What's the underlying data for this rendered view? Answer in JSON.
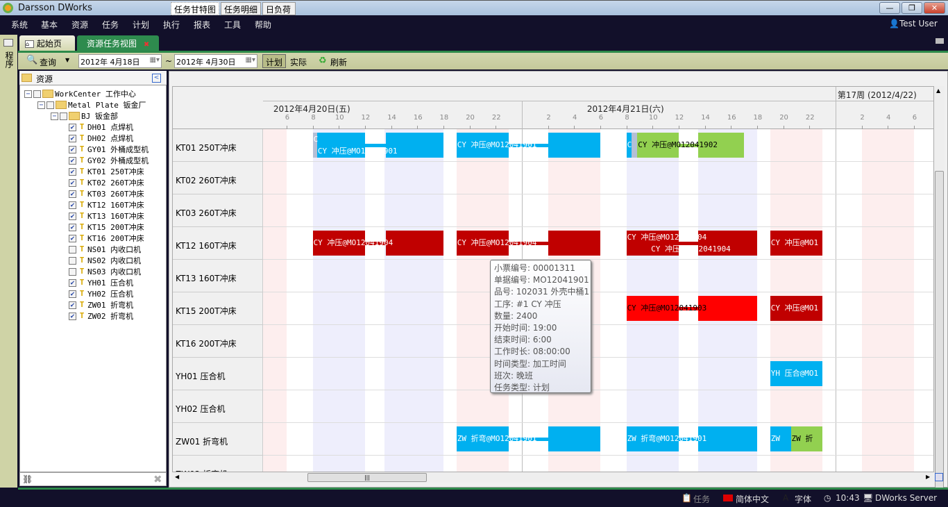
{
  "app": {
    "title": "Darsson DWorks",
    "user": "Test User"
  },
  "menu": [
    "系统",
    "基本",
    "资源",
    "任务",
    "计划",
    "执行",
    "报表",
    "工具",
    "帮助"
  ],
  "tabs": [
    {
      "label": "起始页"
    },
    {
      "label": "资源任务视图",
      "active": true
    }
  ],
  "left_strip": "程序",
  "toolbar": {
    "query": "查询",
    "date_from": "2012年  4月18日",
    "tilde": "~",
    "date_to": "2012年  4月30日",
    "plan": "计划",
    "actual": "实际",
    "refresh": "刷新"
  },
  "tree": {
    "header": "资源",
    "nodes": [
      {
        "label": "WorkCenter 工作中心",
        "level": 0,
        "checked": false
      },
      {
        "label": "Metal Plate 钣金厂",
        "level": 1,
        "checked": false
      },
      {
        "label": "BJ 钣金部",
        "level": 2,
        "checked": false
      },
      {
        "label": "DH01 点焊机",
        "level": 3,
        "checked": true
      },
      {
        "label": "DH02 点焊机",
        "level": 3,
        "checked": true
      },
      {
        "label": "GY01 外桶成型机",
        "level": 3,
        "checked": true
      },
      {
        "label": "GY02 外桶成型机",
        "level": 3,
        "checked": true
      },
      {
        "label": "KT01 250T冲床",
        "level": 3,
        "checked": true
      },
      {
        "label": "KT02 260T冲床",
        "level": 3,
        "checked": true
      },
      {
        "label": "KT03 260T冲床",
        "level": 3,
        "checked": true
      },
      {
        "label": "KT12 160T冲床",
        "level": 3,
        "checked": true
      },
      {
        "label": "KT13 160T冲床",
        "level": 3,
        "checked": true
      },
      {
        "label": "KT15 200T冲床",
        "level": 3,
        "checked": true
      },
      {
        "label": "KT16 200T冲床",
        "level": 3,
        "checked": true
      },
      {
        "label": "NS01 内收口机",
        "level": 3,
        "checked": false
      },
      {
        "label": "NS02 内收口机",
        "level": 3,
        "checked": false
      },
      {
        "label": "NS03 内收口机",
        "level": 3,
        "checked": false
      },
      {
        "label": "YH01 压合机",
        "level": 3,
        "checked": true
      },
      {
        "label": "YH02 压合机",
        "level": 3,
        "checked": true
      },
      {
        "label": "ZW01 折弯机",
        "level": 3,
        "checked": true
      },
      {
        "label": "ZW02 折弯机",
        "level": 3,
        "checked": true
      }
    ]
  },
  "view_tabs": [
    "任务甘特图",
    "任务明细",
    "日负荷"
  ],
  "gantt": {
    "week_label": "第17周 (2012/4/22)",
    "days": [
      {
        "date": "2012-04-20",
        "label": "2012年4月20日(五)"
      },
      {
        "date": "2012-04-21",
        "label": "2012年4月21日(六)"
      },
      {
        "date": "2012-04-22",
        "label": ""
      }
    ],
    "hour_ticks": [
      6,
      8,
      10,
      12,
      14,
      16,
      18,
      20,
      22,
      2,
      4,
      6,
      8,
      10,
      12,
      14,
      16,
      18,
      20,
      22,
      2,
      4,
      6
    ],
    "shifts": {
      "day": [
        [
          "08:00",
          "12:00"
        ],
        [
          "13:30",
          "18:00"
        ]
      ],
      "night": [
        [
          "19:00",
          "23:00"
        ],
        [
          "02:00",
          "06:00"
        ]
      ],
      "colors": {
        "day": "#eeeefc",
        "night": "#fdeeee"
      }
    },
    "resources": [
      "KT01 250T冲床",
      "KT02 260T冲床",
      "KT03 260T冲床",
      "KT12 160T冲床",
      "KT13 160T冲床",
      "KT15 200T冲床",
      "KT16 200T冲床",
      "YH01 压合机",
      "YH02 压合机",
      "ZW01 折弯机",
      "ZW02 折弯机"
    ],
    "tasks": [
      {
        "row": 0,
        "label": "C",
        "color": "#b4bfd6",
        "text": "#fff",
        "segs": [
          [
            "2012-04-20 08:00",
            "2012-04-20 08:20"
          ]
        ]
      },
      {
        "row": 0,
        "label": "CY 冲压@MO12041901",
        "color": "#00b0f0",
        "text": "#fff",
        "segs": [
          [
            "2012-04-20 08:20",
            "2012-04-20 12:00"
          ],
          [
            "2012-04-20 13:35",
            "2012-04-20 18:00"
          ]
        ]
      },
      {
        "row": 0,
        "label": "CY 冲压@MO12041901",
        "color": "#00b0f0",
        "text": "#fff",
        "segs": [
          [
            "2012-04-20 19:00",
            "2012-04-20 23:00"
          ],
          [
            "2012-04-21 02:00",
            "2012-04-21 06:00"
          ]
        ]
      },
      {
        "row": 0,
        "label": "C",
        "color": "#00b0f0",
        "text": "#fff",
        "segs": [
          [
            "2012-04-21 08:00",
            "2012-04-21 08:25"
          ]
        ]
      },
      {
        "row": 0,
        "label": "",
        "color": "#b4bfd6",
        "text": "#fff",
        "segs": [
          [
            "2012-04-21 08:25",
            "2012-04-21 08:50"
          ]
        ]
      },
      {
        "row": 0,
        "label": "CY 冲压@MO12041902",
        "color": "#92d050",
        "text": "#000",
        "segs": [
          [
            "2012-04-21 08:50",
            "2012-04-21 12:00"
          ],
          [
            "2012-04-21 13:30",
            "2012-04-21 17:00"
          ]
        ]
      },
      {
        "row": 3,
        "label": "CY 冲压@MO12041904",
        "color": "#c00000",
        "text": "#fff",
        "segs": [
          [
            "2012-04-20 08:00",
            "2012-04-20 12:00"
          ],
          [
            "2012-04-20 13:35",
            "2012-04-20 18:00"
          ]
        ]
      },
      {
        "row": 3,
        "label": "CY 冲压@MO12041904",
        "color": "#c00000",
        "text": "#fff",
        "segs": [
          [
            "2012-04-20 19:00",
            "2012-04-20 23:00"
          ],
          [
            "2012-04-21 02:00",
            "2012-04-21 06:00"
          ]
        ]
      },
      {
        "row": 3,
        "label": "CY 冲压@MO12041904",
        "color": "#c00000",
        "text": "#fff",
        "segs": [
          [
            "2012-04-21 08:00",
            "2012-04-21 09:50"
          ]
        ]
      },
      {
        "row": 3,
        "label": "CY 冲压@MO12041904",
        "color": "#c00000",
        "text": "#fff",
        "segs": [
          [
            "2012-04-21 09:50",
            "2012-04-21 12:00"
          ],
          [
            "2012-04-21 13:30",
            "2012-04-21 18:00"
          ]
        ]
      },
      {
        "row": 3,
        "label": "CY 冲压@MO1",
        "color": "#c00000",
        "text": "#fff",
        "segs": [
          [
            "2012-04-21 19:00",
            "2012-04-21 23:00"
          ]
        ]
      },
      {
        "row": 5,
        "label": "CY 冲压@MO12041903",
        "color": "#ff0000",
        "text": "#000",
        "segs": [
          [
            "2012-04-21 08:00",
            "2012-04-21 12:00"
          ],
          [
            "2012-04-21 13:30",
            "2012-04-21 18:00"
          ]
        ]
      },
      {
        "row": 5,
        "label": "CY 冲压@MO1",
        "color": "#c00000",
        "text": "#fff",
        "segs": [
          [
            "2012-04-21 19:00",
            "2012-04-21 23:00"
          ]
        ]
      },
      {
        "row": 7,
        "label": "YH 压合@MO1",
        "color": "#00b0f0",
        "text": "#fff",
        "segs": [
          [
            "2012-04-21 19:00",
            "2012-04-21 23:00"
          ]
        ]
      },
      {
        "row": 9,
        "label": "ZW 折弯@MO12041901",
        "color": "#00b0f0",
        "text": "#fff",
        "segs": [
          [
            "2012-04-20 19:00",
            "2012-04-20 23:00"
          ],
          [
            "2012-04-21 02:00",
            "2012-04-21 06:00"
          ]
        ]
      },
      {
        "row": 9,
        "label": "ZW 折弯@MO12041901",
        "color": "#00b0f0",
        "text": "#fff",
        "segs": [
          [
            "2012-04-21 08:00",
            "2012-04-21 12:00"
          ],
          [
            "2012-04-21 13:30",
            "2012-04-21 18:00"
          ]
        ]
      },
      {
        "row": 9,
        "label": "ZW",
        "color": "#00b0f0",
        "text": "#fff",
        "segs": [
          [
            "2012-04-21 19:00",
            "2012-04-21 20:35"
          ]
        ]
      },
      {
        "row": 9,
        "label": "ZW 折",
        "color": "#92d050",
        "text": "#000",
        "segs": [
          [
            "2012-04-21 20:35",
            "2012-04-21 23:00"
          ]
        ]
      }
    ]
  },
  "tooltip": [
    "小票编号: 00001311",
    "单据编号: MO12041901",
    "品号: 102031 外壳中桶1",
    "工序: #1  CY 冲压",
    "数量: 2400",
    "开始时间: 19:00",
    "结束时间: 6:00",
    "工作时长: 08:00:00",
    "时间类型: 加工时间",
    "班次: 晚班",
    "任务类型: 计划"
  ],
  "status": {
    "task": "任务",
    "language": "简体中文",
    "font": "字体",
    "time": "10:43",
    "server": "DWorks Server"
  },
  "colors": {
    "menubar": "#12102a",
    "accent_green": "#2d8a4a",
    "toolbar": "#cfd3a6"
  }
}
